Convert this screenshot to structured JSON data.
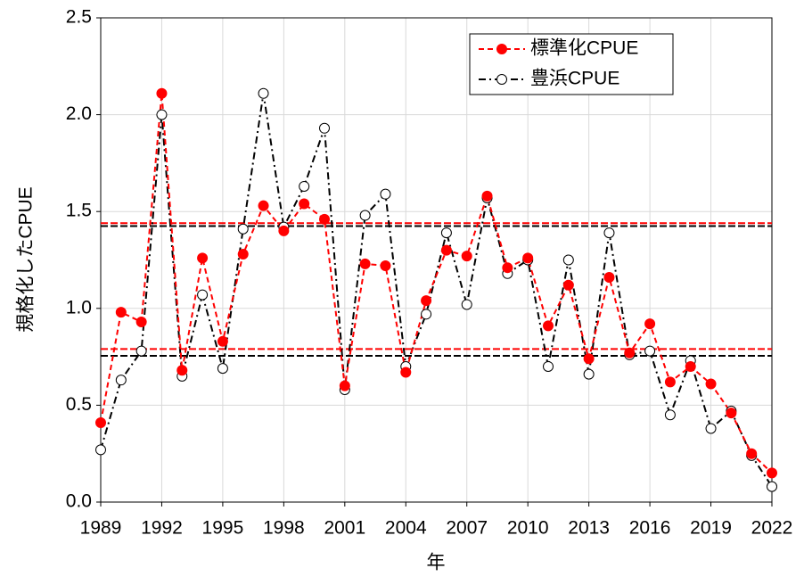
{
  "chart_data": {
    "type": "line",
    "y_label": "規格化したCPUE",
    "x_label": "年",
    "x": [
      1989,
      1990,
      1991,
      1992,
      1993,
      1994,
      1995,
      1996,
      1997,
      1998,
      1999,
      2000,
      2001,
      2002,
      2003,
      2004,
      2005,
      2006,
      2007,
      2008,
      2009,
      2010,
      2011,
      2012,
      2013,
      2014,
      2015,
      2016,
      2017,
      2018,
      2019,
      2020,
      2021,
      2022
    ],
    "series": [
      {
        "name": "標準化CPUE",
        "color": "#ff0000",
        "marker_fill": "#ff0000",
        "values": [
          0.41,
          0.98,
          0.93,
          2.11,
          0.68,
          1.26,
          0.83,
          1.28,
          1.53,
          1.4,
          1.54,
          1.46,
          0.6,
          1.23,
          1.22,
          0.67,
          1.04,
          1.3,
          1.27,
          1.58,
          1.21,
          1.26,
          0.91,
          1.12,
          0.74,
          1.16,
          0.77,
          0.92,
          0.62,
          0.7,
          0.61,
          0.46,
          0.25,
          0.15
        ]
      },
      {
        "name": "豊浜CPUE",
        "color": "#000000",
        "marker_fill": "#ffffff",
        "values": [
          0.27,
          0.63,
          0.78,
          2.0,
          0.65,
          1.07,
          0.69,
          1.41,
          2.11,
          1.42,
          1.63,
          1.93,
          0.58,
          1.48,
          1.59,
          0.7,
          0.97,
          1.39,
          1.02,
          1.57,
          1.18,
          1.25,
          0.7,
          1.25,
          0.66,
          1.39,
          0.76,
          0.78,
          0.45,
          0.73,
          0.38,
          0.47,
          0.24,
          0.08
        ]
      }
    ],
    "hlines": [
      {
        "value": 1.44,
        "color": "#ff0000"
      },
      {
        "value": 0.79,
        "color": "#ff0000"
      },
      {
        "value": 1.425,
        "color": "#000000"
      },
      {
        "value": 0.755,
        "color": "#000000"
      }
    ],
    "xlim": [
      1989,
      2022
    ],
    "xticks": [
      1989,
      1992,
      1995,
      1998,
      2001,
      2004,
      2007,
      2010,
      2013,
      2016,
      2019,
      2022
    ],
    "ylim": [
      0,
      2.5
    ],
    "yticks": [
      {
        "value": 0,
        "label": "0.0"
      },
      {
        "value": 0.5,
        "label": "0.5"
      },
      {
        "value": 1,
        "label": "1.0"
      },
      {
        "value": 1.5,
        "label": "1.5"
      },
      {
        "value": 2,
        "label": "2.0"
      },
      {
        "value": 2.5,
        "label": "2.5"
      }
    ],
    "grid": true,
    "legend": "upper right"
  }
}
